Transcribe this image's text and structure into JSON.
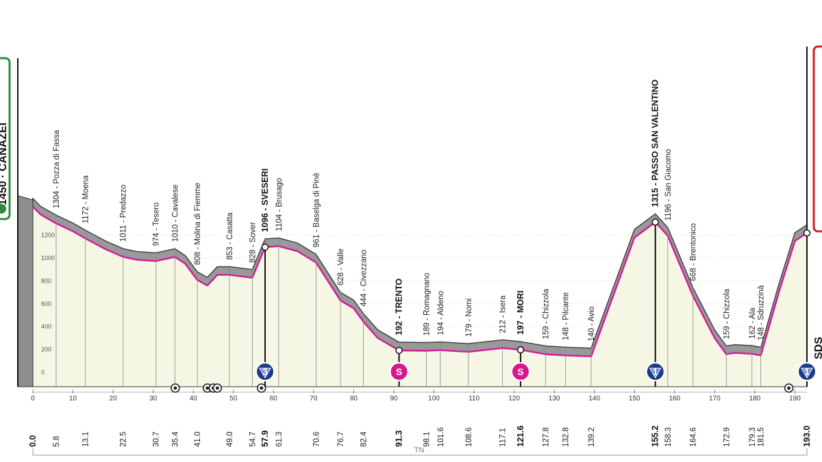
{
  "chart_data": {
    "type": "area",
    "km_range": [
      0,
      193
    ],
    "alt_range": [
      0,
      1400
    ],
    "altitude_ticks": [
      0,
      200,
      400,
      600,
      800,
      1000,
      1200
    ],
    "km_ticks": [
      0,
      10,
      20,
      30,
      40,
      50,
      60,
      70,
      80,
      90,
      100,
      110,
      120,
      130,
      140,
      150,
      160,
      170,
      180,
      190
    ],
    "start_label": "1450 · CANAZEI",
    "finish_label": "SDS",
    "region_label": "TN",
    "profile": [
      {
        "km": 0,
        "alt": 1450
      },
      {
        "km": 2,
        "alt": 1380
      },
      {
        "km": 5.8,
        "alt": 1304
      },
      {
        "km": 10,
        "alt": 1235
      },
      {
        "km": 13.1,
        "alt": 1172
      },
      {
        "km": 18,
        "alt": 1080
      },
      {
        "km": 22.5,
        "alt": 1011
      },
      {
        "km": 26,
        "alt": 985
      },
      {
        "km": 30.7,
        "alt": 974
      },
      {
        "km": 35.4,
        "alt": 1010
      },
      {
        "km": 38,
        "alt": 950
      },
      {
        "km": 41.0,
        "alt": 808
      },
      {
        "km": 43.5,
        "alt": 760
      },
      {
        "km": 46,
        "alt": 853
      },
      {
        "km": 49.0,
        "alt": 853
      },
      {
        "km": 52,
        "alt": 840
      },
      {
        "km": 54.7,
        "alt": 828
      },
      {
        "km": 57.9,
        "alt": 1096
      },
      {
        "km": 61.3,
        "alt": 1104
      },
      {
        "km": 66,
        "alt": 1060
      },
      {
        "km": 70.6,
        "alt": 961
      },
      {
        "km": 76.7,
        "alt": 628
      },
      {
        "km": 80,
        "alt": 560
      },
      {
        "km": 82.4,
        "alt": 444
      },
      {
        "km": 86,
        "alt": 300
      },
      {
        "km": 91.3,
        "alt": 192
      },
      {
        "km": 98.1,
        "alt": 189
      },
      {
        "km": 101.6,
        "alt": 194
      },
      {
        "km": 108.6,
        "alt": 179
      },
      {
        "km": 117.1,
        "alt": 212
      },
      {
        "km": 121.6,
        "alt": 197
      },
      {
        "km": 127.8,
        "alt": 159
      },
      {
        "km": 132.8,
        "alt": 148
      },
      {
        "km": 139.2,
        "alt": 140
      },
      {
        "km": 145,
        "alt": 700
      },
      {
        "km": 150,
        "alt": 1180
      },
      {
        "km": 155.2,
        "alt": 1315
      },
      {
        "km": 158.3,
        "alt": 1196
      },
      {
        "km": 164.6,
        "alt": 668
      },
      {
        "km": 170,
        "alt": 300
      },
      {
        "km": 172.9,
        "alt": 159
      },
      {
        "km": 175,
        "alt": 170
      },
      {
        "km": 179.3,
        "alt": 162
      },
      {
        "km": 181.5,
        "alt": 148
      },
      {
        "km": 186,
        "alt": 700
      },
      {
        "km": 190,
        "alt": 1150
      },
      {
        "km": 193.0,
        "alt": 1220
      }
    ],
    "locations": [
      {
        "km": 5.8,
        "alt": 1304,
        "label": "1304 - Pozza di Fassa",
        "bold": false
      },
      {
        "km": 13.1,
        "alt": 1172,
        "label": "1172 - Moena",
        "bold": false
      },
      {
        "km": 22.5,
        "alt": 1011,
        "label": "1011 - Predazzo",
        "bold": false
      },
      {
        "km": 30.7,
        "alt": 974,
        "label": "974 - Tesero",
        "bold": false
      },
      {
        "km": 35.4,
        "alt": 1010,
        "label": "1010 - Cavalese",
        "bold": false
      },
      {
        "km": 41.0,
        "alt": 808,
        "label": "808 - Molina di Fiemme",
        "bold": false
      },
      {
        "km": 49.0,
        "alt": 853,
        "label": "853 - Casatta",
        "bold": false
      },
      {
        "km": 54.7,
        "alt": 828,
        "label": "828 - Sover",
        "bold": false
      },
      {
        "km": 57.9,
        "alt": 1096,
        "label": "1096 - SVESERI",
        "bold": true
      },
      {
        "km": 61.3,
        "alt": 1104,
        "label": "1104 - Brusago",
        "bold": false
      },
      {
        "km": 70.6,
        "alt": 961,
        "label": "961 - Baselga di Pinè",
        "bold": false
      },
      {
        "km": 76.7,
        "alt": 628,
        "label": "628 - Valle",
        "bold": false
      },
      {
        "km": 82.4,
        "alt": 444,
        "label": "444 - Civezzano",
        "bold": false
      },
      {
        "km": 91.3,
        "alt": 192,
        "label": "192 - TRENTO",
        "bold": true
      },
      {
        "km": 98.1,
        "alt": 189,
        "label": "189 - Romagnano",
        "bold": false
      },
      {
        "km": 101.6,
        "alt": 194,
        "label": "194 - Aldeno",
        "bold": false
      },
      {
        "km": 108.6,
        "alt": 179,
        "label": "179 - Nomi",
        "bold": false
      },
      {
        "km": 117.1,
        "alt": 212,
        "label": "212 - Isera",
        "bold": false
      },
      {
        "km": 121.6,
        "alt": 197,
        "label": "197 - MORI",
        "bold": true
      },
      {
        "km": 127.8,
        "alt": 159,
        "label": "159 - Chizzola",
        "bold": false
      },
      {
        "km": 132.8,
        "alt": 148,
        "label": "148 - Pilcante",
        "bold": false
      },
      {
        "km": 139.2,
        "alt": 140,
        "label": "140 - Avio",
        "bold": false
      },
      {
        "km": 155.2,
        "alt": 1315,
        "label": "1315 - PASSO SAN VALENTINO",
        "bold": true
      },
      {
        "km": 158.3,
        "alt": 1196,
        "label": "1196 - San Giacomo",
        "bold": false
      },
      {
        "km": 164.6,
        "alt": 668,
        "label": "668 - Brentonico",
        "bold": false
      },
      {
        "km": 172.9,
        "alt": 159,
        "label": "159 - Chizzola",
        "bold": false
      },
      {
        "km": 179.3,
        "alt": 162,
        "label": "162 - Ala",
        "bold": false
      },
      {
        "km": 181.5,
        "alt": 148,
        "label": "148 - Sdruzzinà",
        "bold": false
      }
    ],
    "distances": [
      {
        "km": 0.0,
        "label": "0.0",
        "bold": true
      },
      {
        "km": 5.8,
        "label": "5.8",
        "bold": false
      },
      {
        "km": 13.1,
        "label": "13.1",
        "bold": false
      },
      {
        "km": 22.5,
        "label": "22.5",
        "bold": false
      },
      {
        "km": 30.7,
        "label": "30.7",
        "bold": false
      },
      {
        "km": 35.4,
        "label": "35.4",
        "bold": false
      },
      {
        "km": 41.0,
        "label": "41.0",
        "bold": false
      },
      {
        "km": 49.0,
        "label": "49.0",
        "bold": false
      },
      {
        "km": 54.7,
        "label": "54.7",
        "bold": false
      },
      {
        "km": 57.9,
        "label": "57.9",
        "bold": true
      },
      {
        "km": 61.3,
        "label": "61.3",
        "bold": false
      },
      {
        "km": 70.6,
        "label": "70.6",
        "bold": false
      },
      {
        "km": 76.7,
        "label": "76.7",
        "bold": false
      },
      {
        "km": 82.4,
        "label": "82.4",
        "bold": false
      },
      {
        "km": 91.3,
        "label": "91.3",
        "bold": true
      },
      {
        "km": 98.1,
        "label": "98.1",
        "bold": false
      },
      {
        "km": 101.6,
        "label": "101.6",
        "bold": false
      },
      {
        "km": 108.6,
        "label": "108.6",
        "bold": false
      },
      {
        "km": 117.1,
        "label": "117.1",
        "bold": false
      },
      {
        "km": 121.6,
        "label": "121.6",
        "bold": true
      },
      {
        "km": 127.8,
        "label": "127.8",
        "bold": false
      },
      {
        "km": 132.8,
        "label": "132.8",
        "bold": false
      },
      {
        "km": 139.2,
        "label": "139.2",
        "bold": false
      },
      {
        "km": 155.2,
        "label": "155.2",
        "bold": true
      },
      {
        "km": 158.3,
        "label": "158.3",
        "bold": false
      },
      {
        "km": 164.6,
        "label": "164.6",
        "bold": false
      },
      {
        "km": 172.9,
        "label": "172.9",
        "bold": false
      },
      {
        "km": 179.3,
        "label": "179.3",
        "bold": false
      },
      {
        "km": 181.5,
        "label": "181.5",
        "bold": false
      },
      {
        "km": 193.0,
        "label": "193.0",
        "bold": true
      }
    ],
    "markers": [
      {
        "km": 57.9,
        "type": "climb",
        "label": "3"
      },
      {
        "km": 91.3,
        "type": "sprint",
        "label": "S"
      },
      {
        "km": 121.6,
        "type": "sprint",
        "label": "S"
      },
      {
        "km": 155.2,
        "type": "climb",
        "label": "1"
      },
      {
        "km": 193.0,
        "type": "climb",
        "label": "1"
      }
    ],
    "tunnels_km": [
      35.5,
      43.5,
      45.0,
      46.0,
      57.0,
      188.5
    ],
    "colors": {
      "profile_fill": "#999999",
      "profile_dark": "#3d3d3d",
      "base_fill": "#f5f6e3",
      "route_line": "#d6189a",
      "sprint": "#d9168e",
      "climb": "#1e3a8a",
      "start": "#2e8b3e",
      "finish": "#cc2222"
    }
  }
}
